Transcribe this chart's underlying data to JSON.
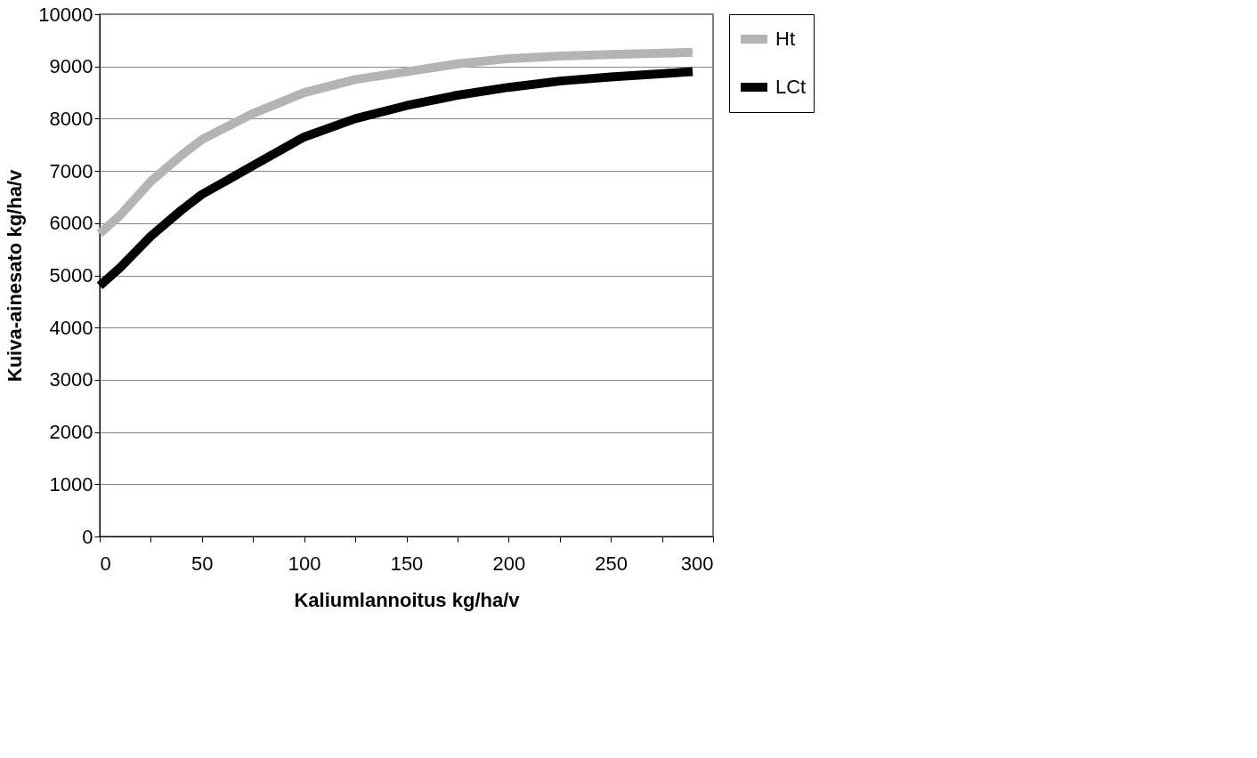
{
  "chart_data": {
    "type": "line",
    "xlabel": "Kaliumlannoitus kg/ha/v",
    "ylabel": "Kuiva-ainesato kg/ha/v",
    "xlim": [
      0,
      300
    ],
    "xticks": [
      0,
      {
        "value": 25,
        "label": null
      },
      50,
      {
        "value": 75,
        "label": null
      },
      100,
      {
        "value": 125,
        "label": null
      },
      150,
      {
        "value": 175,
        "label": null
      },
      200,
      {
        "value": 225,
        "label": null
      },
      250,
      {
        "value": 275,
        "label": null
      },
      300
    ],
    "ylim": [
      0,
      10000
    ],
    "yticks": [
      0,
      1000,
      2000,
      3000,
      4000,
      5000,
      6000,
      7000,
      8000,
      9000,
      10000
    ],
    "grid": "y",
    "legend": "right",
    "marker": "none",
    "line_style": "solid",
    "series": [
      {
        "name": "Ht",
        "color": "#b4b4b4",
        "x": [
          0,
          10,
          25,
          40,
          50,
          75,
          100,
          125,
          150,
          175,
          200,
          225,
          250,
          290
        ],
        "values": [
          5800,
          6150,
          6800,
          7300,
          7600,
          8100,
          8500,
          8750,
          8900,
          9050,
          9150,
          9200,
          9230,
          9270
        ]
      },
      {
        "name": "LCt",
        "color": "#000000",
        "x": [
          0,
          10,
          25,
          40,
          50,
          75,
          100,
          125,
          150,
          175,
          200,
          225,
          250,
          290
        ],
        "values": [
          4800,
          5150,
          5750,
          6250,
          6550,
          7100,
          7650,
          8000,
          8250,
          8450,
          8600,
          8720,
          8800,
          8900
        ]
      }
    ]
  }
}
